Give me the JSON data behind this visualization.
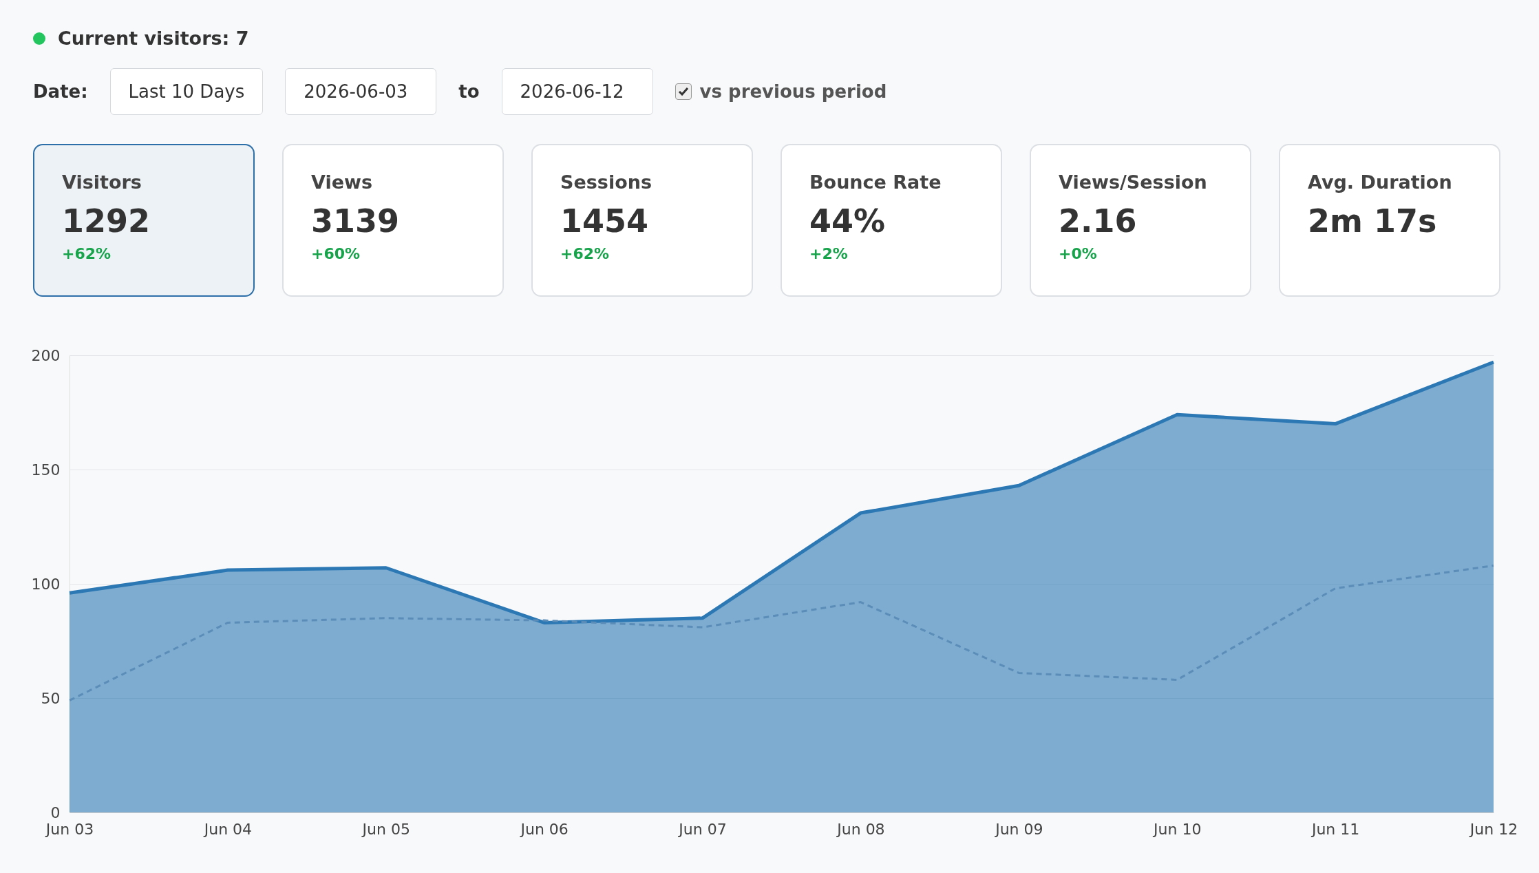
{
  "chart_data": [
    {
      "type": "other",
      "title": "Current visitors: 7",
      "annotations": [
        "Date:",
        "Last 10 Days",
        "2026-06-03",
        "to",
        "2026-06-12",
        "vs previous period",
        "Visitors",
        "1292",
        "+62%",
        "Views",
        "3139",
        "+60%",
        "Sessions",
        "1454",
        "+62%",
        "Bounce Rate",
        "44%",
        "+2%",
        "Views/Session",
        "2.16",
        "+0%",
        "Avg. Duration",
        "2m 17s"
      ]
    },
    {
      "type": "area",
      "categories": [
        "Jun 03",
        "Jun 04",
        "Jun 05",
        "Jun 06",
        "Jun 07",
        "Jun 08",
        "Jun 09",
        "Jun 10",
        "Jun 11",
        "Jun 12"
      ],
      "series": [
        {
          "type": "area",
          "color": "#2c78b4",
          "values": [
            96,
            106,
            107,
            83,
            85,
            131,
            143,
            174,
            170,
            197
          ]
        },
        {
          "type": "line",
          "color": "#5b8db8",
          "line_style": "dashed",
          "values": [
            49,
            83,
            85,
            84,
            81,
            92,
            61,
            58,
            98,
            108
          ]
        }
      ],
      "ylim": [
        0,
        200
      ],
      "yticks": [
        0,
        50,
        100,
        150,
        200
      ],
      "grid": "y"
    }
  ]
}
